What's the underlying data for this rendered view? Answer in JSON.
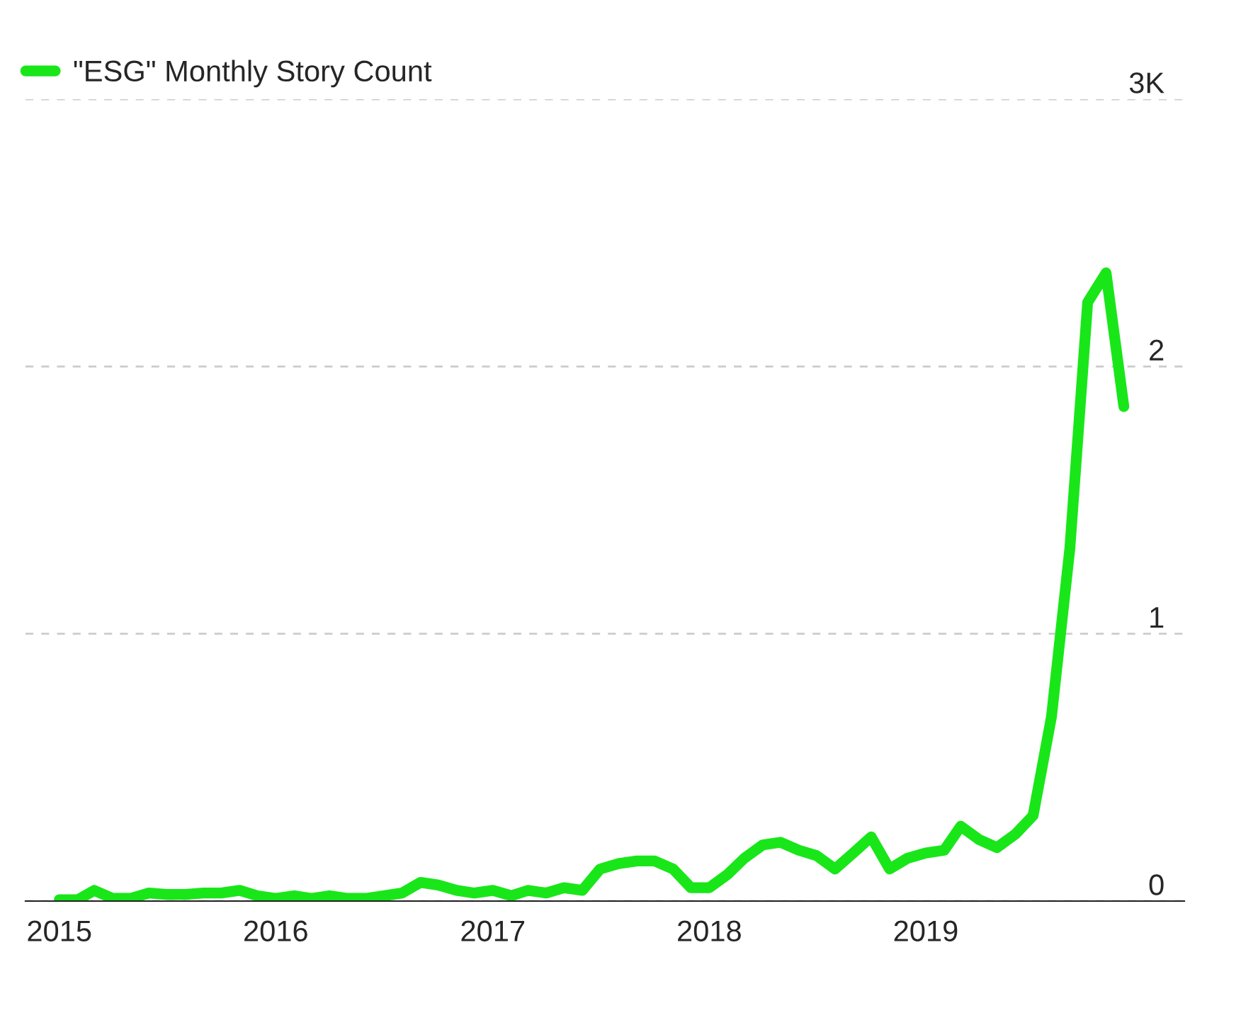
{
  "chart_data": {
    "type": "line",
    "x": [
      "2015-01",
      "2015-02",
      "2015-03",
      "2015-04",
      "2015-05",
      "2015-06",
      "2015-07",
      "2015-08",
      "2015-09",
      "2015-10",
      "2015-11",
      "2015-12",
      "2016-01",
      "2016-02",
      "2016-03",
      "2016-04",
      "2016-05",
      "2016-06",
      "2016-07",
      "2016-08",
      "2016-09",
      "2016-10",
      "2016-11",
      "2016-12",
      "2017-01",
      "2017-02",
      "2017-03",
      "2017-04",
      "2017-05",
      "2017-06",
      "2017-07",
      "2017-08",
      "2017-09",
      "2017-10",
      "2017-11",
      "2017-12",
      "2018-01",
      "2018-02",
      "2018-03",
      "2018-04",
      "2018-05",
      "2018-06",
      "2018-07",
      "2018-08",
      "2018-09",
      "2018-10",
      "2018-11",
      "2018-12",
      "2019-01",
      "2019-02",
      "2019-03",
      "2019-04",
      "2019-05",
      "2019-06",
      "2019-07",
      "2019-08",
      "2019-09",
      "2019-10",
      "2019-11",
      "2019-12"
    ],
    "series": [
      {
        "name": "\"ESG\" Monthly Story Count",
        "color": "#19e619",
        "values": [
          0.005,
          0.005,
          0.04,
          0.01,
          0.01,
          0.03,
          0.025,
          0.025,
          0.03,
          0.03,
          0.04,
          0.02,
          0.01,
          0.02,
          0.01,
          0.02,
          0.01,
          0.01,
          0.02,
          0.03,
          0.07,
          0.06,
          0.04,
          0.03,
          0.04,
          0.02,
          0.04,
          0.03,
          0.05,
          0.04,
          0.12,
          0.14,
          0.15,
          0.15,
          0.12,
          0.05,
          0.05,
          0.1,
          0.16,
          0.21,
          0.22,
          0.19,
          0.17,
          0.12,
          0.18,
          0.24,
          0.12,
          0.16,
          0.18,
          0.19,
          0.28,
          0.23,
          0.2,
          0.25,
          0.32,
          0.69,
          1.32,
          2.24,
          2.35,
          1.85
        ]
      }
    ],
    "xlim": [
      "2014-11-05",
      "2020-03-12"
    ],
    "xticks": [
      "2015",
      "2016",
      "2017",
      "2018",
      "2019"
    ],
    "ylim": [
      0,
      3
    ],
    "yticks": [
      0,
      1,
      2,
      {
        "value": 3,
        "label": "3K"
      }
    ],
    "grid": "y",
    "legend": "top left",
    "line_style": "solid",
    "marker": "none"
  }
}
